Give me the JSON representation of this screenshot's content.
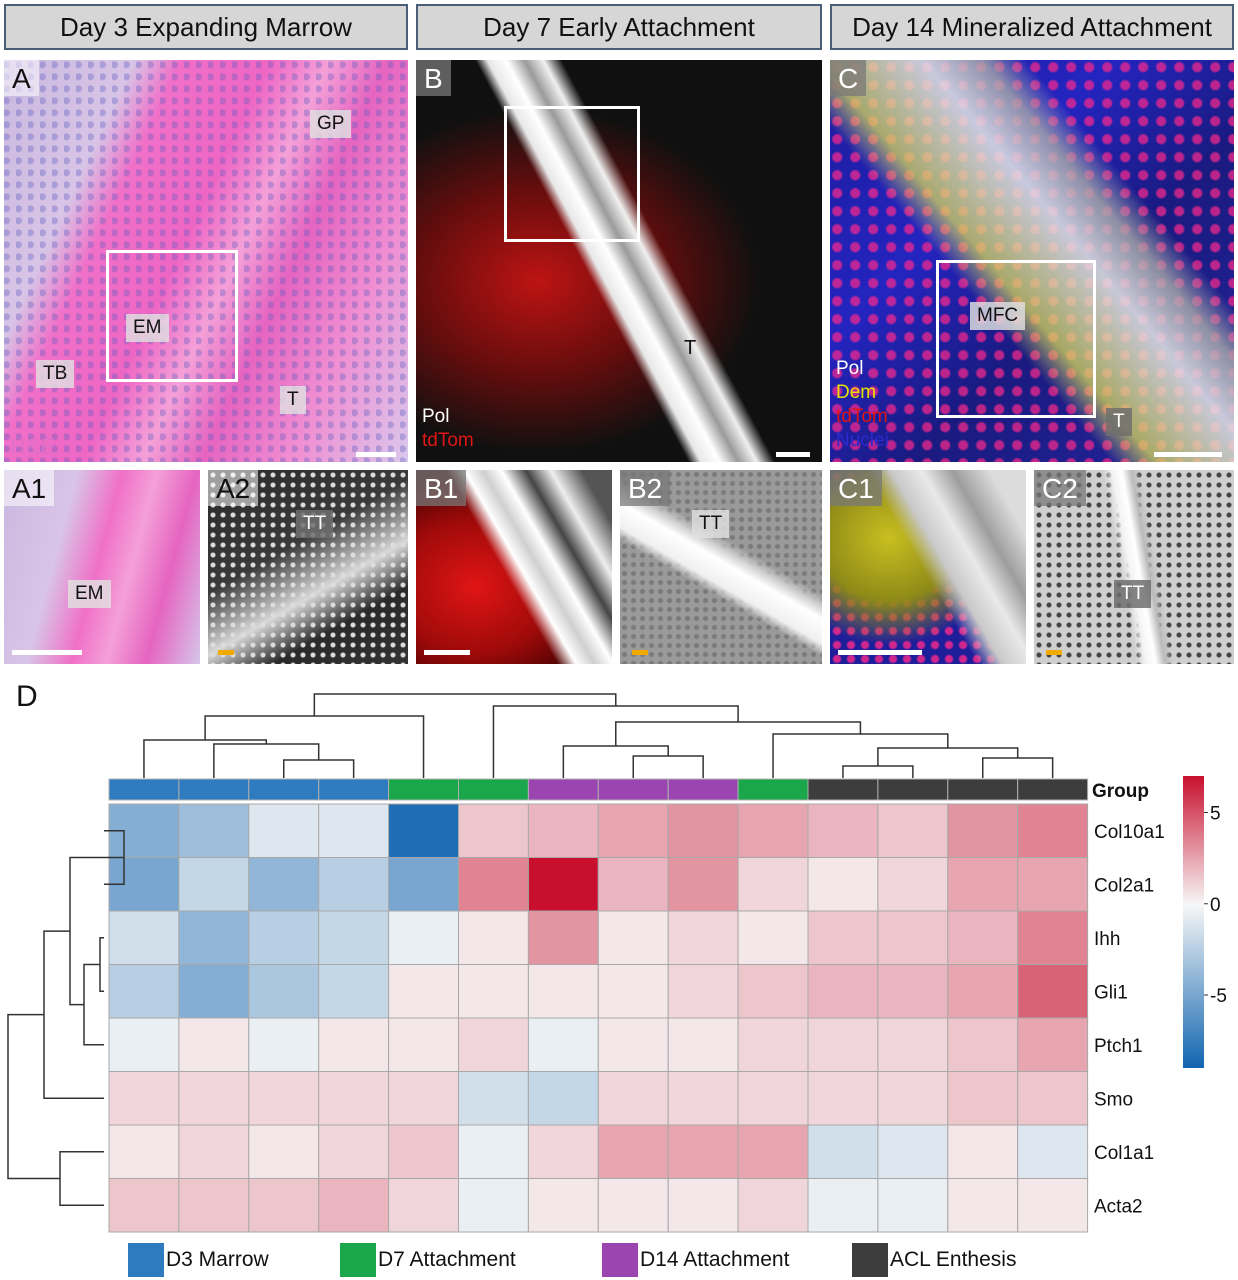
{
  "headers": [
    "Day 3 Expanding Marrow",
    "Day 7 Early Attachment",
    "Day 14 Mineralized Attachment"
  ],
  "panels": {
    "A": {
      "label": "A",
      "tags": {
        "gp": "GP",
        "em": "EM",
        "tb": "TB",
        "t": "T"
      },
      "stain": "H&E"
    },
    "B": {
      "label": "B",
      "tags": {
        "t": "T"
      },
      "legend": [
        "Pol",
        "tdTom"
      ]
    },
    "C": {
      "label": "C",
      "tags": {
        "mfc": "MFC",
        "t": "T"
      },
      "legend": [
        "Pol",
        "Dem",
        "tdTom",
        "Nuclei"
      ]
    },
    "A1": {
      "label": "A1",
      "tag": "EM"
    },
    "A2": {
      "label": "A2",
      "tag": "TT"
    },
    "B1": {
      "label": "B1"
    },
    "B2": {
      "label": "B2",
      "tag": "TT"
    },
    "C1": {
      "label": "C1"
    },
    "C2": {
      "label": "C2",
      "tag": "TT"
    }
  },
  "colors": {
    "he_pink": "#e36fc4",
    "tdtom_red": "#e01515",
    "dem_yellow": "#e6e200",
    "nuclei_blue": "#2a2ad0",
    "pol_white": "#ffffff",
    "scale_yellow": "#f2a900"
  },
  "chart_data": {
    "type": "heatmap",
    "panel_label": "D",
    "rows": [
      "Col10a1",
      "Col2a1",
      "Ihh",
      "Gli1",
      "Ptch1",
      "Smo",
      "Col1a1",
      "Acta2"
    ],
    "column_groups": [
      "D3 Marrow",
      "D3 Marrow",
      "D3 Marrow",
      "D3 Marrow",
      "D7 Attachment",
      "D7 Attachment",
      "D14 Attachment",
      "D14 Attachment",
      "D14 Attachment",
      "D7 Attachment",
      "ACL Enthesis",
      "ACL Enthesis",
      "ACL Enthesis",
      "ACL Enthesis"
    ],
    "group_annotation_title": "Group",
    "group_colors": {
      "D3 Marrow": "#2f7bbf",
      "D7 Attachment": "#1aa64a",
      "D14 Attachment": "#9a45b0",
      "ACL Enthesis": "#3d3d3d"
    },
    "values": [
      [
        -4.5,
        -3.5,
        -1.0,
        -1.0,
        -8.5,
        1.5,
        2.0,
        2.5,
        3.0,
        2.5,
        2.0,
        1.5,
        3.0,
        3.5
      ],
      [
        -5.0,
        -2.0,
        -4.0,
        -2.5,
        -5.0,
        3.5,
        7.0,
        2.0,
        3.0,
        1.0,
        0.5,
        1.0,
        2.5,
        2.5
      ],
      [
        -1.5,
        -4.0,
        -2.5,
        -2.0,
        -0.5,
        0.5,
        3.0,
        0.5,
        1.0,
        0.5,
        1.5,
        1.5,
        2.0,
        3.5
      ],
      [
        -2.5,
        -4.5,
        -3.0,
        -2.0,
        0.5,
        0.5,
        0.5,
        0.5,
        1.0,
        1.5,
        2.0,
        2.0,
        2.5,
        4.5
      ],
      [
        -0.5,
        0.5,
        -0.5,
        0.5,
        0.5,
        1.0,
        -0.5,
        0.5,
        0.5,
        1.0,
        1.0,
        1.0,
        1.5,
        2.5
      ],
      [
        1.0,
        1.0,
        1.0,
        1.0,
        1.0,
        -1.5,
        -2.0,
        1.0,
        1.0,
        1.0,
        1.0,
        1.0,
        1.5,
        1.5
      ],
      [
        0.5,
        1.0,
        0.5,
        1.0,
        1.5,
        -0.5,
        1.0,
        2.5,
        2.5,
        2.5,
        -1.5,
        -1.0,
        0.5,
        -1.0
      ],
      [
        1.5,
        1.5,
        1.5,
        2.0,
        1.0,
        -0.5,
        0.5,
        0.5,
        0.5,
        1.0,
        -0.5,
        -0.5,
        0.5,
        0.5
      ]
    ],
    "colorbar": {
      "ticks": [
        5,
        0,
        -5
      ],
      "range": [
        -9,
        7
      ],
      "low_color": "#1265b0",
      "mid_color": "#f7f7f7",
      "high_color": "#c8102e"
    },
    "legend": [
      "D3 Marrow",
      "D7 Attachment",
      "D14 Attachment",
      "ACL Enthesis"
    ]
  }
}
